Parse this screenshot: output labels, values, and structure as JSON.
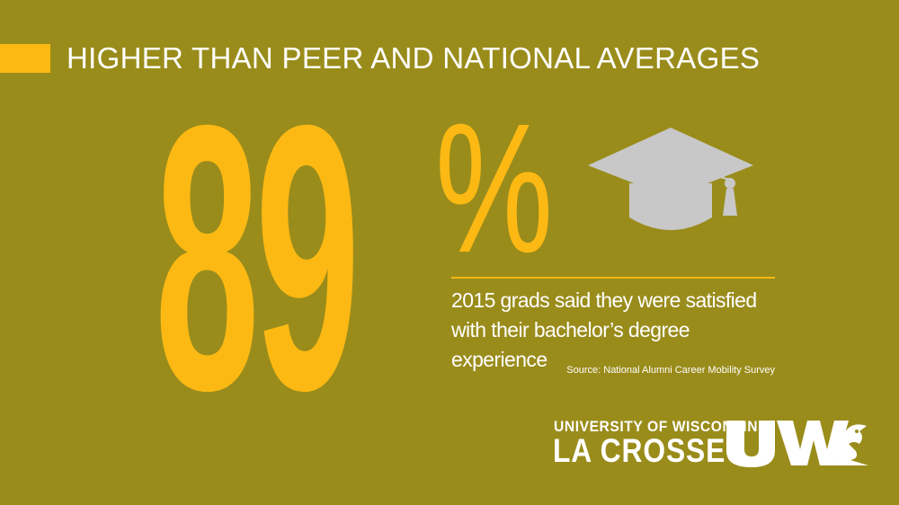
{
  "headline": "HIGHER THAN PEER AND NATIONAL AVERAGES",
  "stat": {
    "value": "89",
    "symbol": "%"
  },
  "caption": "2015 grads said they were satisfied with their bachelor’s degree experience",
  "source": "Source: National Alumni Career Mobility Survey",
  "logo": {
    "line1": "UNIVERSITY OF WISCONSIN",
    "line2": "LA CROSSE",
    "mark": "UW"
  },
  "icons": {
    "cap": "graduation-cap-icon",
    "logo_mark": "uwl-eagle-logo"
  },
  "colors": {
    "background": "#9a8c1b",
    "accent": "#fdb913",
    "icon": "#c8c8c8",
    "text": "#ffffff"
  }
}
